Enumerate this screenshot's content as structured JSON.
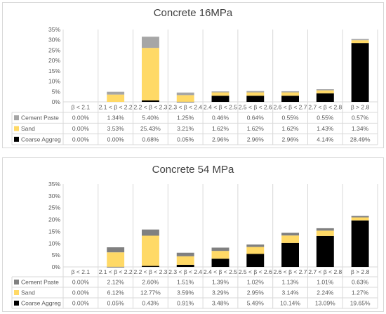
{
  "chart_data": [
    {
      "type": "bar",
      "stacked": true,
      "title": "Concrete 16MPa",
      "categories": [
        "β < 2.1",
        "2.1 < β < 2.2",
        "2.2 < β < 2.3",
        "2.3 < β < 2.4",
        "2.4 < β < 2.5",
        "2.5 < β < 2.6",
        "2.6 < β < 2.7",
        "2.7 < β < 2.8",
        "β > 2.8"
      ],
      "series": [
        {
          "name": "Cement Paste",
          "color": "#a6a6a6",
          "values": [
            0.0,
            1.34,
            5.4,
            1.25,
            0.46,
            0.64,
            0.55,
            0.55,
            0.57
          ],
          "labels": [
            "0.00%",
            "1.34%",
            "5.40%",
            "1.25%",
            "0.46%",
            "0.64%",
            "0.55%",
            "0.55%",
            "0.57%"
          ]
        },
        {
          "name": "Sand",
          "color": "#ffd966",
          "values": [
            0.0,
            3.53,
            25.43,
            3.21,
            1.62,
            1.62,
            1.62,
            1.43,
            1.34
          ],
          "labels": [
            "0.00%",
            "3.53%",
            "25.43%",
            "3.21%",
            "1.62%",
            "1.62%",
            "1.62%",
            "1.43%",
            "1.34%"
          ]
        },
        {
          "name": "Coarse Aggreg",
          "color": "#000000",
          "values": [
            0.0,
            0.0,
            0.68,
            0.05,
            2.96,
            2.96,
            2.96,
            4.14,
            28.49
          ],
          "labels": [
            "0.00%",
            "0.00%",
            "0.68%",
            "0.05%",
            "2.96%",
            "2.96%",
            "2.96%",
            "4.14%",
            "28.49%"
          ]
        }
      ],
      "ylim": [
        0,
        35
      ],
      "yticks": [
        "0%",
        "5%",
        "10%",
        "15%",
        "20%",
        "25%",
        "30%",
        "35%"
      ],
      "grid": false,
      "legend": "data-table"
    },
    {
      "type": "bar",
      "stacked": true,
      "title": "Concrete 54 MPa",
      "categories": [
        "β < 2.1",
        "2.1 < β < 2.2",
        "2.2 < β < 2.3",
        "2.3 < β < 2.4",
        "2.4 < β < 2.5",
        "2.5 < β < 2.6",
        "2.6 < β < 2.7",
        "2.7 < β < 2.8",
        "β > 2.8"
      ],
      "series": [
        {
          "name": "Cement Paste",
          "color": "#808080",
          "values": [
            0.0,
            2.12,
            2.6,
            1.51,
            1.39,
            1.02,
            1.13,
            1.01,
            0.63
          ],
          "labels": [
            "0.00%",
            "2.12%",
            "2.60%",
            "1.51%",
            "1.39%",
            "1.02%",
            "1.13%",
            "1.01%",
            "0.63%"
          ]
        },
        {
          "name": "Sand",
          "color": "#ffd966",
          "values": [
            0.0,
            6.12,
            12.77,
            3.59,
            3.29,
            2.95,
            3.14,
            2.24,
            1.27
          ],
          "labels": [
            "0.00%",
            "6.12%",
            "12.77%",
            "3.59%",
            "3.29%",
            "2.95%",
            "3.14%",
            "2.24%",
            "1.27%"
          ]
        },
        {
          "name": "Coarse Aggreg",
          "color": "#000000",
          "values": [
            0.0,
            0.05,
            0.43,
            0.91,
            3.48,
            5.49,
            10.14,
            13.09,
            19.65
          ],
          "labels": [
            "0.00%",
            "0.05%",
            "0.43%",
            "0.91%",
            "3.48%",
            "5.49%",
            "10.14%",
            "13.09%",
            "19.65%"
          ]
        }
      ],
      "ylim": [
        0,
        35
      ],
      "yticks": [
        "0%",
        "5%",
        "10%",
        "15%",
        "20%",
        "25%",
        "30%",
        "35%"
      ],
      "grid": false,
      "legend": "data-table"
    }
  ]
}
